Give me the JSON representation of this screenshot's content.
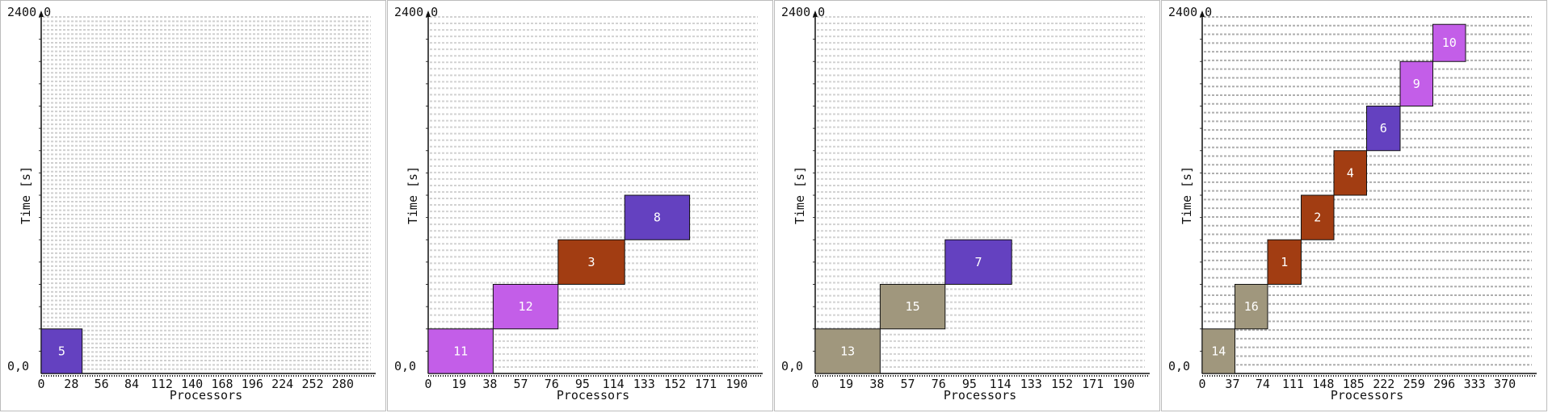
{
  "chart_data": [
    {
      "type": "gantt",
      "ytop_label": "2400,0",
      "origin_label": "0,0",
      "xlabel": "Processors",
      "ylabel": "Time [s]",
      "xlim": [
        0,
        306
      ],
      "ylim": [
        0,
        2400
      ],
      "xticks": [
        0,
        28,
        56,
        84,
        112,
        140,
        168,
        196,
        224,
        252,
        280
      ],
      "grid_lines": 83,
      "grid_color": "#cfcfcf",
      "jobs": [
        {
          "id": "5",
          "x0": 0,
          "x1": 38,
          "y0": 0,
          "y1": 300,
          "color": "#6441c0"
        }
      ]
    },
    {
      "type": "gantt",
      "ytop_label": "2400,0",
      "origin_label": "0,0",
      "xlabel": "Processors",
      "ylabel": "Time [s]",
      "xlim": [
        0,
        203
      ],
      "ylim": [
        0,
        2400
      ],
      "xticks": [
        0,
        19,
        38,
        57,
        76,
        95,
        114,
        133,
        152,
        171,
        190
      ],
      "grid_lines": 55,
      "grid_color": "#d2d2d2",
      "jobs": [
        {
          "id": "11",
          "x0": 0,
          "x1": 40,
          "y0": 0,
          "y1": 300,
          "color": "#c35ee8"
        },
        {
          "id": "12",
          "x0": 40,
          "x1": 80,
          "y0": 300,
          "y1": 600,
          "color": "#c35ee8"
        },
        {
          "id": "3",
          "x0": 80,
          "x1": 121,
          "y0": 600,
          "y1": 900,
          "color": "#a23d12"
        },
        {
          "id": "8",
          "x0": 121,
          "x1": 161,
          "y0": 900,
          "y1": 1200,
          "color": "#6441c0"
        }
      ]
    },
    {
      "type": "gantt",
      "ytop_label": "2400,0",
      "origin_label": "0,0",
      "xlabel": "Processors",
      "ylabel": "Time [s]",
      "xlim": [
        0,
        203
      ],
      "ylim": [
        0,
        2400
      ],
      "xticks": [
        0,
        19,
        38,
        57,
        76,
        95,
        114,
        133,
        152,
        171,
        190
      ],
      "grid_lines": 55,
      "grid_color": "#d2d2d2",
      "jobs": [
        {
          "id": "13",
          "x0": 0,
          "x1": 40,
          "y0": 0,
          "y1": 300,
          "color": "#a0977d"
        },
        {
          "id": "15",
          "x0": 40,
          "x1": 80,
          "y0": 300,
          "y1": 600,
          "color": "#a0977d"
        },
        {
          "id": "7",
          "x0": 80,
          "x1": 121,
          "y0": 600,
          "y1": 900,
          "color": "#6441c0"
        }
      ]
    },
    {
      "type": "gantt",
      "ytop_label": "2400,0",
      "origin_label": "0,0",
      "xlabel": "Processors",
      "ylabel": "Time [s]",
      "xlim": [
        0,
        403
      ],
      "ylim": [
        0,
        2400
      ],
      "xticks": [
        0,
        37,
        74,
        111,
        148,
        185,
        222,
        259,
        296,
        333,
        370
      ],
      "grid_lines": 41,
      "grid_color": "#aeaeae",
      "jobs": [
        {
          "id": "14",
          "x0": 0,
          "x1": 40,
          "y0": 0,
          "y1": 300,
          "color": "#a0977d"
        },
        {
          "id": "16",
          "x0": 40,
          "x1": 80,
          "y0": 300,
          "y1": 600,
          "color": "#a0977d"
        },
        {
          "id": "1",
          "x0": 80,
          "x1": 121,
          "y0": 600,
          "y1": 900,
          "color": "#a23d12"
        },
        {
          "id": "2",
          "x0": 121,
          "x1": 161,
          "y0": 900,
          "y1": 1200,
          "color": "#a23d12"
        },
        {
          "id": "4",
          "x0": 161,
          "x1": 201,
          "y0": 1200,
          "y1": 1500,
          "color": "#a23d12"
        },
        {
          "id": "6",
          "x0": 201,
          "x1": 242,
          "y0": 1500,
          "y1": 1800,
          "color": "#6441c0"
        },
        {
          "id": "9",
          "x0": 242,
          "x1": 282,
          "y0": 1800,
          "y1": 2100,
          "color": "#c35ee8"
        },
        {
          "id": "10",
          "x0": 282,
          "x1": 322,
          "y0": 2100,
          "y1": 2350,
          "color": "#c35ee8"
        }
      ]
    }
  ]
}
